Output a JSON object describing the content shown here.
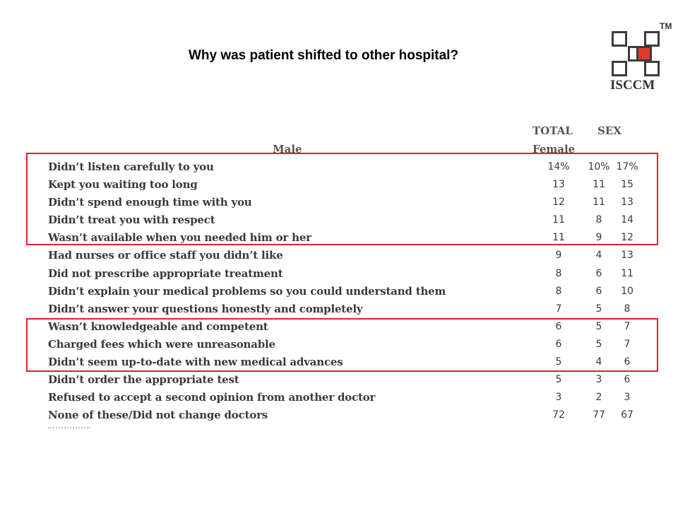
{
  "title": "Why was patient shifted to other hospital?",
  "logo": {
    "brand": "ISCCM",
    "tm": "TM"
  },
  "table": {
    "header_male": "Male",
    "header_total": "TOTAL",
    "header_sex": "SEX",
    "header_female": "Female",
    "rows": [
      {
        "label": "Didn’t listen carefully to you",
        "total": "14%",
        "female": "10%",
        "male": "17%"
      },
      {
        "label": "Kept you waiting too long",
        "total": "13",
        "female": "11",
        "male": "15"
      },
      {
        "label": "Didn’t spend enough time with you",
        "total": "12",
        "female": "11",
        "male": "13"
      },
      {
        "label": "Didn’t treat you with respect",
        "total": "11",
        "female": "8",
        "male": "14"
      },
      {
        "label": "Wasn’t available when you needed him or her",
        "total": "11",
        "female": "9",
        "male": "12"
      },
      {
        "label": "Had nurses or office staff you didn’t like",
        "total": "9",
        "female": "4",
        "male": "13"
      },
      {
        "label": "Did not prescribe appropriate treatment",
        "total": "8",
        "female": "6",
        "male": "11"
      },
      {
        "label": "Didn’t explain your medical problems so you could understand them",
        "total": "8",
        "female": "6",
        "male": "10"
      },
      {
        "label": "Didn’t answer your questions honestly and completely",
        "total": "7",
        "female": "5",
        "male": "8"
      },
      {
        "label": "Wasn’t knowledgeable and competent",
        "total": "6",
        "female": "5",
        "male": "7"
      },
      {
        "label": "Charged fees which were unreasonable",
        "total": "6",
        "female": "5",
        "male": "7"
      },
      {
        "label": "Didn’t seem up-to-date with new medical advances",
        "total": "5",
        "female": "4",
        "male": "6"
      },
      {
        "label": "Didn’t order the appropriate test",
        "total": "5",
        "female": "3",
        "male": "6"
      },
      {
        "label": "Refused to accept a second opinion from another doctor",
        "total": "3",
        "female": "2",
        "male": "3"
      },
      {
        "label": "None of these/Did not change doctors",
        "total": "72",
        "female": "77",
        "male": "67"
      }
    ]
  },
  "colors": {
    "highlight": "#e0202c",
    "logo_red": "#e03a2e"
  }
}
